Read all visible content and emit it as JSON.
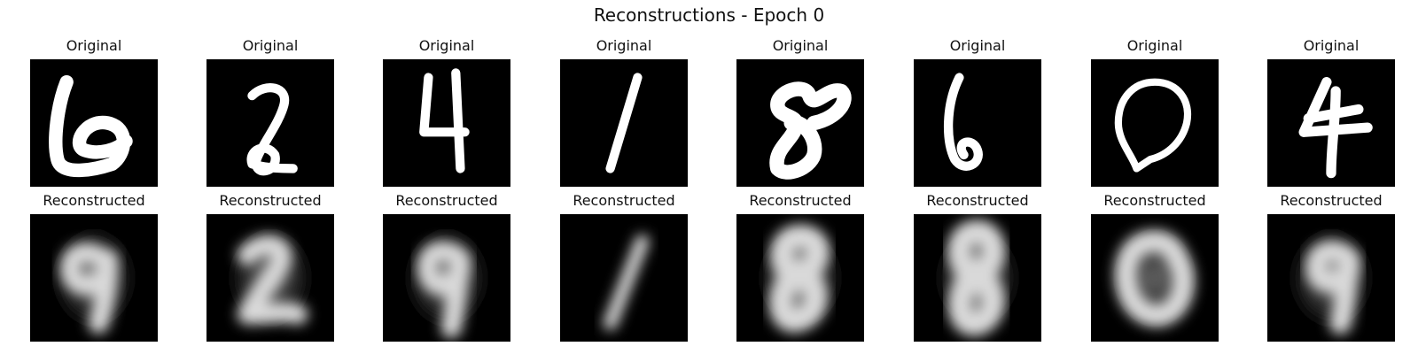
{
  "chart_data": {
    "type": "image_grid",
    "title": "Reconstructions - Epoch 0",
    "rows": [
      {
        "label": "Original",
        "images": [
          {
            "label": "Original",
            "digit": "6"
          },
          {
            "label": "Original",
            "digit": "2"
          },
          {
            "label": "Original",
            "digit": "4"
          },
          {
            "label": "Original",
            "digit": "1"
          },
          {
            "label": "Original",
            "digit": "8"
          },
          {
            "label": "Original",
            "digit": "6"
          },
          {
            "label": "Original",
            "digit": "0"
          },
          {
            "label": "Original",
            "digit": "4"
          }
        ]
      },
      {
        "label": "Reconstructed",
        "images": [
          {
            "label": "Reconstructed",
            "digit": "9"
          },
          {
            "label": "Reconstructed",
            "digit": "2"
          },
          {
            "label": "Reconstructed",
            "digit": "9"
          },
          {
            "label": "Reconstructed",
            "digit": "1"
          },
          {
            "label": "Reconstructed",
            "digit": "8"
          },
          {
            "label": "Reconstructed",
            "digit": "8"
          },
          {
            "label": "Reconstructed",
            "digit": "0"
          },
          {
            "label": "Reconstructed",
            "digit": "9"
          }
        ]
      }
    ],
    "colormap": "gray",
    "background": "#000000"
  }
}
